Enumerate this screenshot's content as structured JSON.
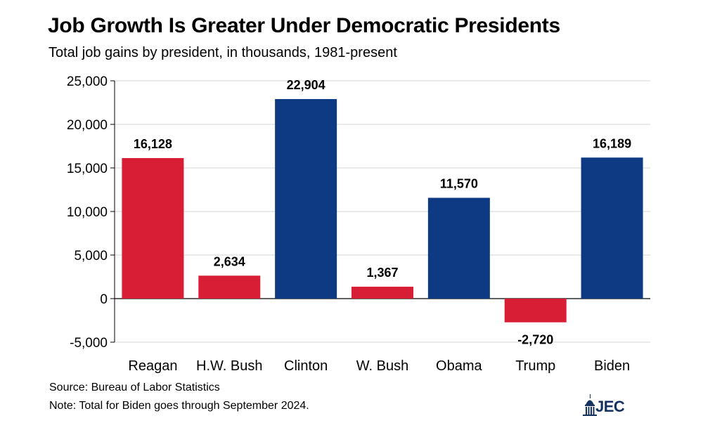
{
  "chart_data": {
    "type": "bar",
    "title": "Job Growth Is Greater Under Democratic Presidents",
    "subtitle": "Total job gains by president, in thousands, 1981-present",
    "categories": [
      "Reagan",
      "H.W. Bush",
      "Clinton",
      "W. Bush",
      "Obama",
      "Trump",
      "Biden"
    ],
    "values": [
      16128,
      2634,
      22904,
      1367,
      11570,
      -2720,
      16189
    ],
    "data_labels": [
      "16,128",
      "2,634",
      "22,904",
      "1,367",
      "11,570",
      "-2,720",
      "16,189"
    ],
    "party": [
      "Republican",
      "Republican",
      "Democratic",
      "Republican",
      "Democratic",
      "Republican",
      "Democratic"
    ],
    "colors": {
      "Republican": "#d81e35",
      "Democratic": "#0d3a82"
    },
    "ylim": [
      -5000,
      25000
    ],
    "yticks": [
      25000,
      20000,
      15000,
      10000,
      5000,
      0,
      -5000
    ],
    "ytick_labels": [
      "25,000",
      "20,000",
      "15,000",
      "10,000",
      "5,000",
      "0",
      "-5,000"
    ],
    "grid": true,
    "xlabel": "",
    "ylabel": ""
  },
  "footer": {
    "source": "Source: Bureau of Labor Statistics",
    "note": "Note: Total for Biden goes through September 2024.",
    "logo_text": "JEC"
  },
  "icons": {
    "logo": "capitol-dome-icon"
  }
}
